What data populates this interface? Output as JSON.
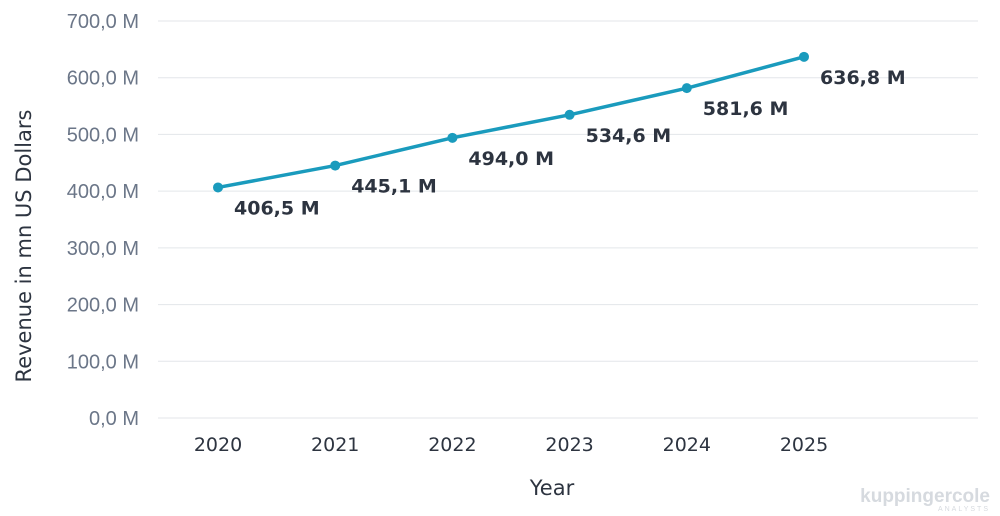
{
  "chart_data": {
    "type": "line",
    "title": "",
    "xlabel": "Year",
    "ylabel": "Revenue in mn US Dollars",
    "categories": [
      "2020",
      "2021",
      "2022",
      "2023",
      "2024",
      "2025"
    ],
    "series": [
      {
        "values": [
          406.5,
          445.1,
          494.0,
          534.6,
          581.6,
          636.8
        ],
        "labels": [
          "406,5 M",
          "445,1 M",
          "494,0 M",
          "534,6 M",
          "581,6 M",
          "636,8 M"
        ]
      }
    ],
    "ylim": [
      0,
      700
    ],
    "yticks": [
      0,
      100,
      200,
      300,
      400,
      500,
      600,
      700
    ],
    "ytick_labels": [
      "0,0 M",
      "100,0 M",
      "200,0 M",
      "300,0 M",
      "400,0 M",
      "500,0 M",
      "600,0 M",
      "700,0 M"
    ],
    "grid": true,
    "legend": "none",
    "line_color": "#1a9bbd",
    "grid_color": "#e3e6ea"
  },
  "watermark": {
    "brand": "kuppingercole",
    "subtitle": "ANALYSTS"
  }
}
